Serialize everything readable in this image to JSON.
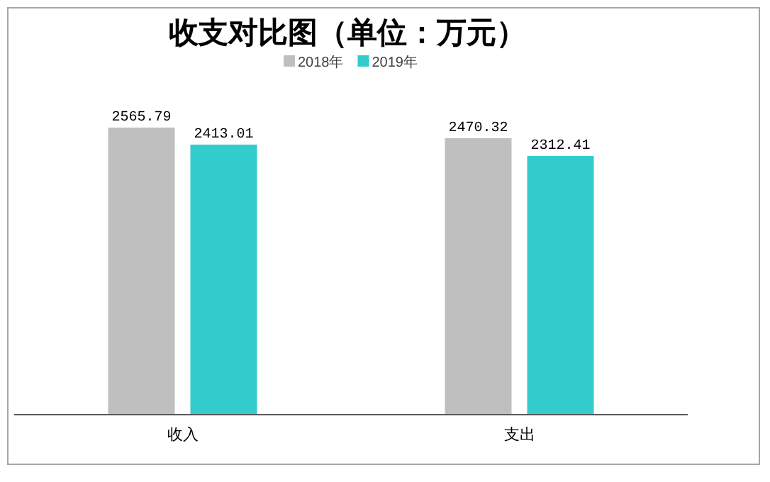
{
  "chart_data": {
    "type": "bar",
    "title": "收支对比图（单位：万元）",
    "categories": [
      "收入",
      "支出"
    ],
    "series": [
      {
        "name": "2018年",
        "color": "#bfbfbf",
        "values": [
          2565.79,
          2470.32
        ]
      },
      {
        "name": "2019年",
        "color": "#33cccc",
        "values": [
          2413.01,
          2312.41
        ]
      }
    ],
    "tick_labels": "x",
    "data_labels": true,
    "legend": "top",
    "grid": false
  }
}
